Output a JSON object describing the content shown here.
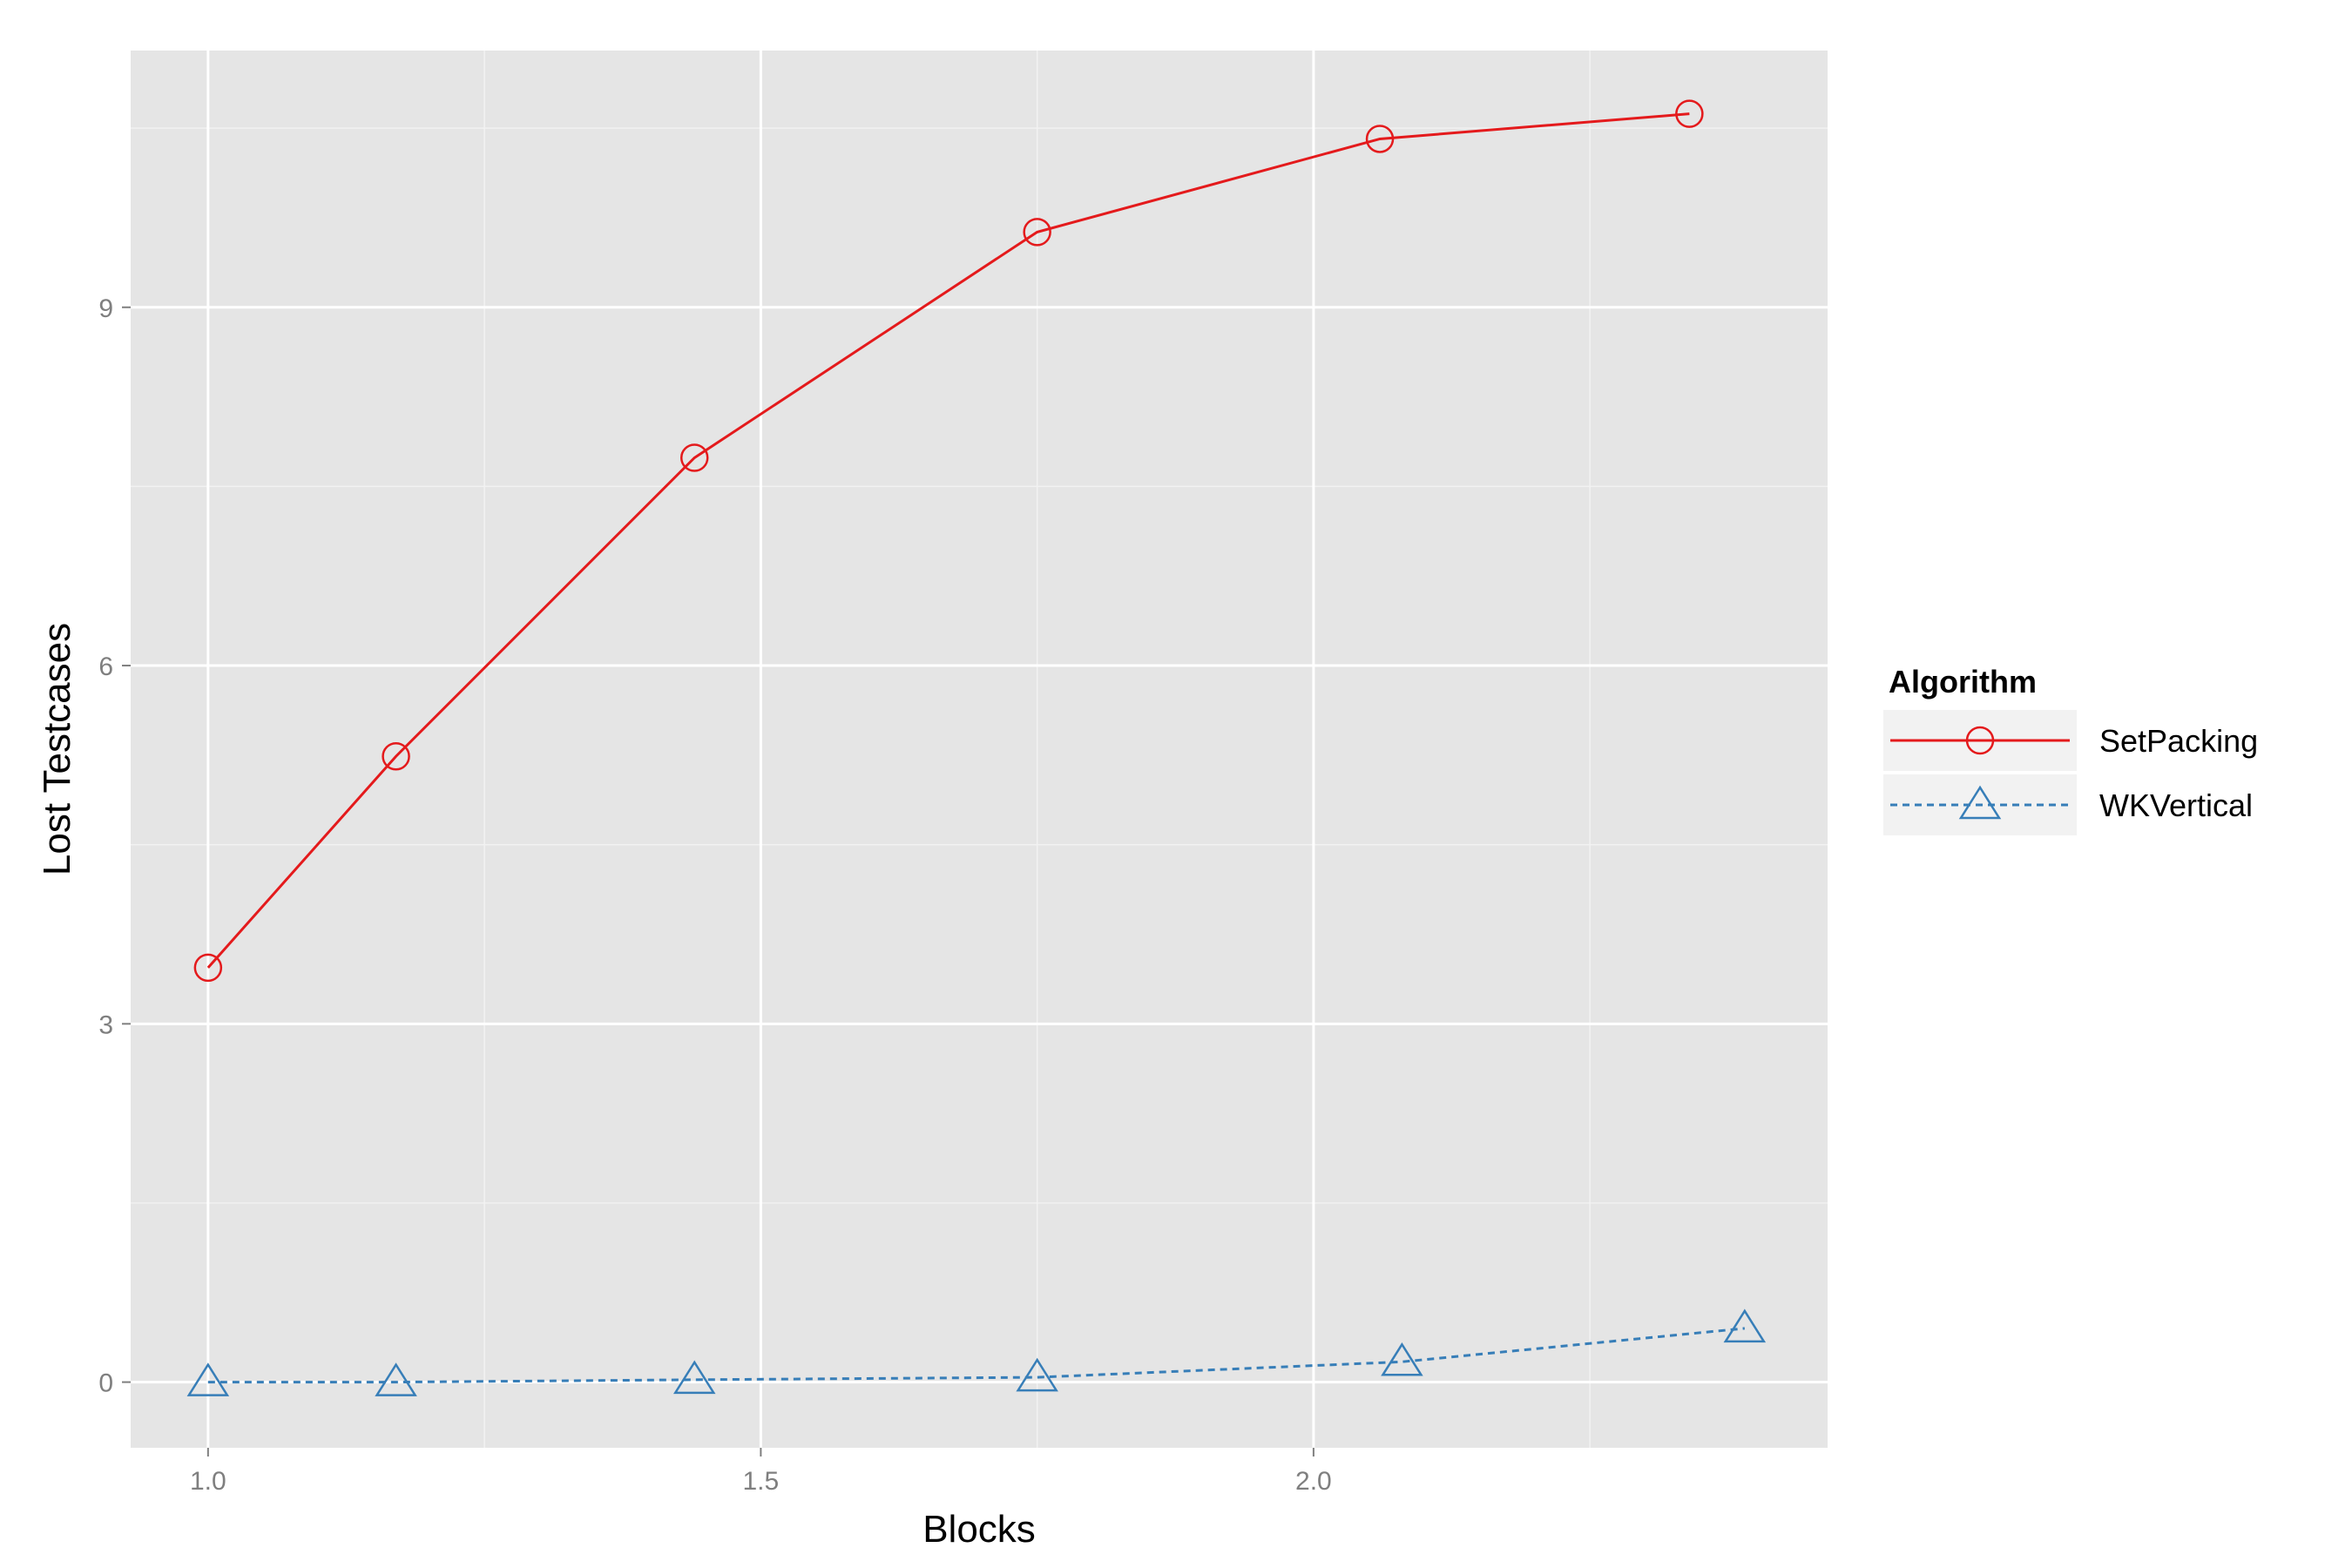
{
  "chart_data": {
    "type": "line",
    "xlabel": "Blocks",
    "ylabel": "Lost Testcases",
    "xlim": [
      0.93,
      2.465
    ],
    "ylim": [
      -0.55,
      11.15
    ],
    "xticks": [
      1.0,
      1.5,
      2.0
    ],
    "xtick_labels": [
      "1.0",
      "1.5",
      "2.0"
    ],
    "yticks": [
      0,
      3,
      6,
      9
    ],
    "ytick_labels": [
      "0",
      "3",
      "6",
      "9"
    ],
    "grid": true,
    "legend": {
      "title": "Algorithm",
      "position": "right"
    },
    "series": [
      {
        "name": "SetPacking",
        "color": "#e41a1c",
        "line_style": "solid",
        "marker": "circle",
        "x": [
          1.0,
          1.17,
          1.44,
          1.75,
          2.06,
          2.34
        ],
        "y": [
          3.47,
          5.24,
          7.74,
          9.63,
          10.41,
          10.62
        ]
      },
      {
        "name": "WKVertical",
        "color": "#377eb8",
        "line_style": "dashed",
        "marker": "triangle",
        "x": [
          1.0,
          1.17,
          1.44,
          1.75,
          2.08,
          2.39
        ],
        "y": [
          0.0,
          0.0,
          0.02,
          0.04,
          0.17,
          0.45
        ]
      }
    ]
  }
}
